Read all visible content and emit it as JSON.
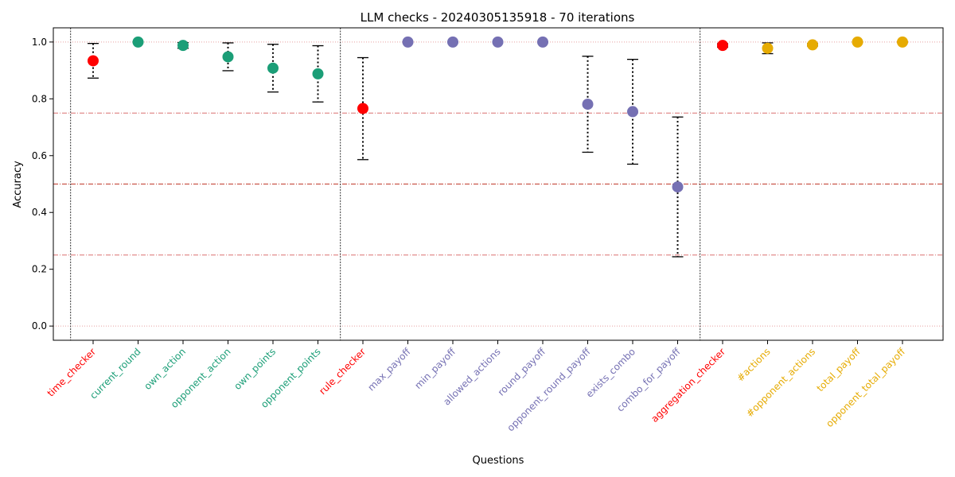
{
  "chart_data": {
    "type": "scatter",
    "title": "LLM checks - 20240305135918 - 70 iterations",
    "xlabel": "Questions",
    "ylabel": "Accuracy",
    "ylim": [
      -0.05,
      1.05
    ],
    "yticks": [
      "0.0",
      "0.2",
      "0.4",
      "0.6",
      "0.8",
      "1.0"
    ],
    "grid": false,
    "reference_lines": [
      {
        "y": 0.0,
        "style": "dotted",
        "color": "#e8a0a0"
      },
      {
        "y": 0.25,
        "style": "dash-dot",
        "color": "#d55a5a"
      },
      {
        "y": 0.5,
        "style": "dash-dot",
        "color": "#c0392b"
      },
      {
        "y": 0.75,
        "style": "dash-dot",
        "color": "#d55a5a"
      },
      {
        "y": 1.0,
        "style": "dotted",
        "color": "#e8a0a0"
      }
    ],
    "group_separators_after_index": [
      -1,
      5,
      13
    ],
    "groups": [
      {
        "color": "#1b9e77"
      },
      {
        "color": "#7570b3"
      },
      {
        "color": "#e6ab02"
      }
    ],
    "checker_color": "#ff0000",
    "points": [
      {
        "label": "time_checker",
        "value": 0.934,
        "low": 0.873,
        "high": 0.995,
        "color": "#ff0000"
      },
      {
        "label": "current_round",
        "value": 1.0,
        "low": 1.0,
        "high": 1.0,
        "color": "#1b9e77"
      },
      {
        "label": "own_action",
        "value": 0.988,
        "low": 0.978,
        "high": 0.998,
        "color": "#1b9e77"
      },
      {
        "label": "opponent_action",
        "value": 0.948,
        "low": 0.899,
        "high": 0.997,
        "color": "#1b9e77"
      },
      {
        "label": "own_points",
        "value": 0.908,
        "low": 0.824,
        "high": 0.992,
        "color": "#1b9e77"
      },
      {
        "label": "opponent_points",
        "value": 0.888,
        "low": 0.789,
        "high": 0.987,
        "color": "#1b9e77"
      },
      {
        "label": "rule_checker",
        "value": 0.766,
        "low": 0.586,
        "high": 0.945,
        "color": "#ff0000"
      },
      {
        "label": "max_payoff",
        "value": 1.0,
        "low": 1.0,
        "high": 1.0,
        "color": "#7570b3"
      },
      {
        "label": "min_payoff",
        "value": 1.0,
        "low": 1.0,
        "high": 1.0,
        "color": "#7570b3"
      },
      {
        "label": "allowed_actions",
        "value": 1.0,
        "low": 1.0,
        "high": 1.0,
        "color": "#7570b3"
      },
      {
        "label": "round_payoff",
        "value": 1.0,
        "low": 1.0,
        "high": 1.0,
        "color": "#7570b3"
      },
      {
        "label": "opponent_round_payoff",
        "value": 0.781,
        "low": 0.612,
        "high": 0.95,
        "color": "#7570b3"
      },
      {
        "label": "exists_combo",
        "value": 0.755,
        "low": 0.57,
        "high": 0.939,
        "color": "#7570b3"
      },
      {
        "label": "combo_for_payoff",
        "value": 0.49,
        "low": 0.244,
        "high": 0.736,
        "color": "#7570b3"
      },
      {
        "label": "aggregation_checker",
        "value": 0.988,
        "low": 0.982,
        "high": 0.994,
        "color": "#ff0000"
      },
      {
        "label": "#actions",
        "value": 0.978,
        "low": 0.959,
        "high": 0.997,
        "color": "#e6ab02"
      },
      {
        "label": "#opponent_actions",
        "value": 0.99,
        "low": 0.986,
        "high": 0.994,
        "color": "#e6ab02"
      },
      {
        "label": "total_payoff",
        "value": 1.0,
        "low": 1.0,
        "high": 1.0,
        "color": "#e6ab02"
      },
      {
        "label": "opponent_total_payoff",
        "value": 1.0,
        "low": 1.0,
        "high": 1.0,
        "color": "#e6ab02"
      }
    ]
  }
}
